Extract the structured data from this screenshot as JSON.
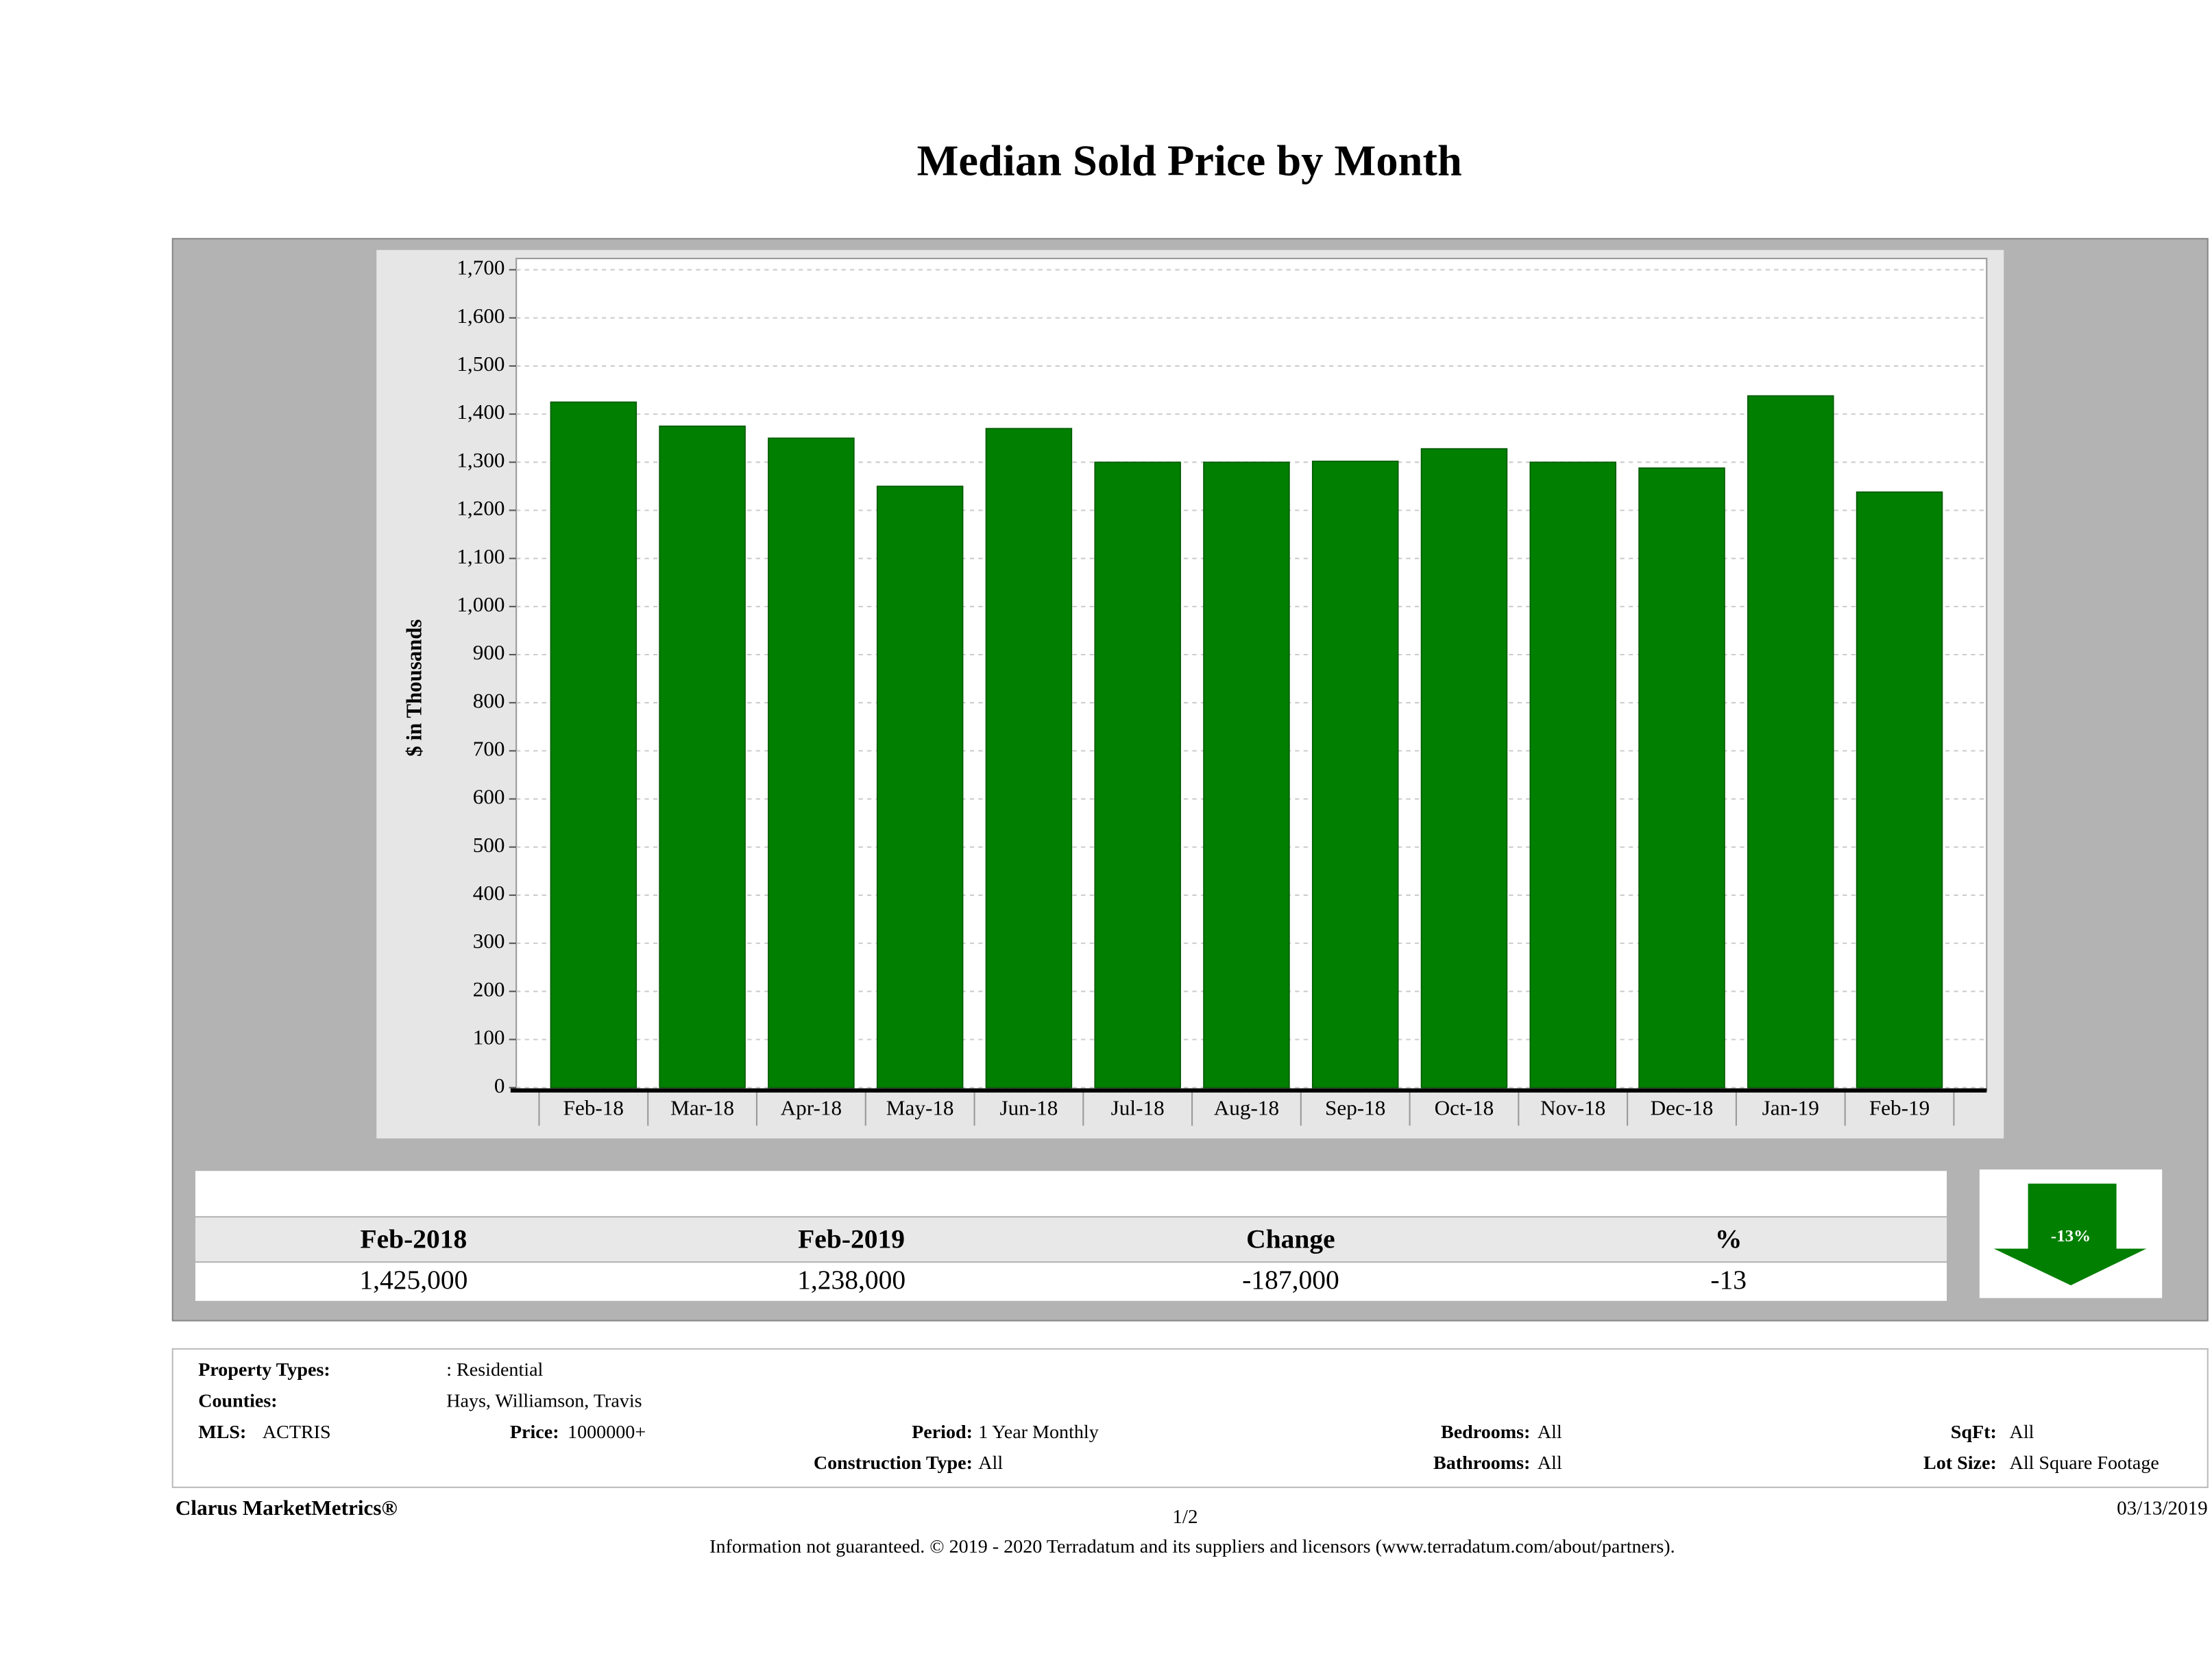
{
  "chart_data": {
    "type": "bar",
    "title": "Median Sold Price by Month",
    "y_label": "$ in Thousands",
    "categories": [
      "Feb-18",
      "Mar-18",
      "Apr-18",
      "May-18",
      "Jun-18",
      "Jul-18",
      "Aug-18",
      "Sep-18",
      "Oct-18",
      "Nov-18",
      "Dec-18",
      "Jan-19",
      "Feb-19"
    ],
    "values": [
      1425,
      1375,
      1350,
      1250,
      1370,
      1300,
      1300,
      1302,
      1328,
      1300,
      1288,
      1438,
      1238
    ],
    "color": "#007f00",
    "ylim": [
      0,
      1700
    ],
    "yticks": [
      0,
      100,
      200,
      300,
      400,
      500,
      600,
      700,
      800,
      900,
      {
        "value": 1000,
        "label": "1,000"
      },
      {
        "value": 1100,
        "label": "1,100"
      },
      {
        "value": 1200,
        "label": "1,200"
      },
      {
        "value": 1300,
        "label": "1,300"
      },
      {
        "value": 1400,
        "label": "1,400"
      },
      {
        "value": 1500,
        "label": "1,500"
      },
      {
        "value": 1600,
        "label": "1,600"
      },
      {
        "value": 1700,
        "label": "1,700"
      }
    ],
    "grid": true
  },
  "summary": {
    "headers": [
      "Feb-2018",
      "Feb-2019",
      "Change",
      "%"
    ],
    "values": [
      "1,425,000",
      "1,238,000",
      "-187,000",
      "-13"
    ],
    "arrow_label": "-13%"
  },
  "info": {
    "fields": [
      {
        "label": "Property Types:",
        "value": ": Residential"
      },
      {
        "label": "Counties:",
        "value": "Hays, Williamson, Travis"
      },
      {
        "label": "MLS:",
        "value": "ACTRIS"
      },
      {
        "label": "Price:",
        "value": "1000000+"
      },
      {
        "label": "Period:",
        "value": "1 Year Monthly"
      },
      {
        "label": "Bedrooms:",
        "value": "All"
      },
      {
        "label": "SqFt:",
        "value": "All"
      },
      {
        "label": "Construction Type:",
        "value": "All"
      },
      {
        "label": "Bathrooms:",
        "value": "All"
      },
      {
        "label": "Lot Size:",
        "value": "All Square Footage"
      }
    ]
  },
  "footer": {
    "brand": "Clarus MarketMetrics®",
    "page": "1/2",
    "date": "03/13/2019",
    "disclaimer": "Information not guaranteed. © 2019 - 2020 Terradatum and its suppliers and licensors (www.terradatum.com/about/partners)."
  }
}
